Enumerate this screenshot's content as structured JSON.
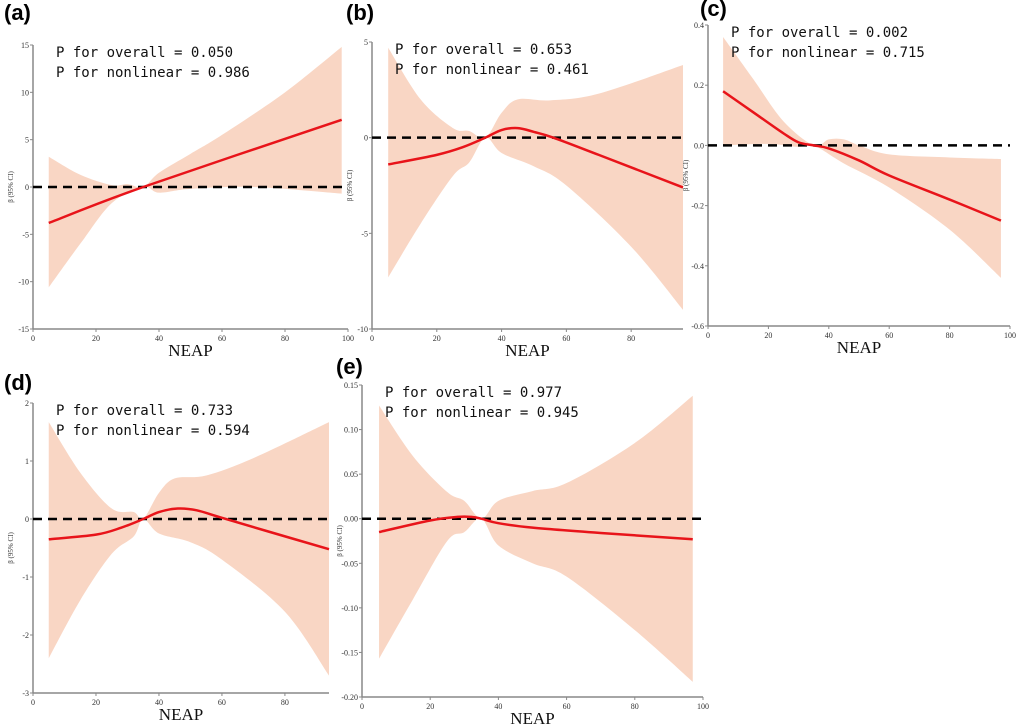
{
  "colors": {
    "fit_line": "#e8141a",
    "ci_band": "#f9d6c4",
    "reference_line": "#000000",
    "axis": "#888888"
  },
  "chart_data": [
    {
      "panel_label": "(a)",
      "type": "line",
      "xlabel": "NEAP",
      "ylabel": "β (95% CI)",
      "xlim": [
        0,
        100
      ],
      "ylim": [
        -15,
        15
      ],
      "xticks": [
        0,
        20,
        40,
        60,
        80,
        100
      ],
      "yticks": [
        -15,
        -10,
        -5,
        0,
        5,
        10,
        15
      ],
      "annotations": [
        "P for overall = 0.050",
        "P for nonlinear = 0.986"
      ],
      "reference_line": 0,
      "fit": {
        "x": [
          5,
          35,
          98
        ],
        "y": [
          -3.8,
          0,
          7.1
        ]
      },
      "ci_upper": {
        "x": [
          5,
          15,
          25,
          30,
          35,
          40,
          50,
          60,
          80,
          98
        ],
        "y": [
          3.2,
          1.3,
          0.2,
          0.3,
          0,
          1.5,
          3.5,
          5.5,
          10,
          14.8
        ]
      },
      "ci_lower": {
        "x": [
          5,
          15,
          25,
          35,
          40,
          50,
          70,
          98
        ],
        "y": [
          -10.6,
          -6,
          -1.7,
          0,
          -0.6,
          -0.2,
          0,
          -0.7
        ]
      }
    },
    {
      "panel_label": "(b)",
      "type": "line",
      "xlabel": "NEAP",
      "ylabel": "β (95% CI)",
      "xlim": [
        0,
        96
      ],
      "ylim": [
        -10,
        5
      ],
      "xticks": [
        0,
        20,
        40,
        60,
        80
      ],
      "yticks": [
        -10,
        -5,
        0,
        5
      ],
      "annotations": [
        "P for overall = 0.653",
        "P for nonlinear = 0.461"
      ],
      "reference_line": 0,
      "fit": {
        "x": [
          5,
          20,
          28,
          35,
          40,
          45,
          50,
          56,
          70,
          96
        ],
        "y": [
          -1.4,
          -0.9,
          -0.5,
          0,
          0.4,
          0.5,
          0.3,
          0,
          -0.9,
          -2.6
        ]
      },
      "ci_upper": {
        "x": [
          5,
          15,
          25,
          30,
          35,
          40,
          45,
          55,
          70,
          96
        ],
        "y": [
          4.7,
          2,
          0.5,
          0.35,
          0,
          1.3,
          2,
          1.95,
          2.3,
          3.8
        ]
      },
      "ci_lower": {
        "x": [
          5,
          15,
          25,
          30,
          35,
          40,
          50,
          60,
          80,
          96
        ],
        "y": [
          -7.3,
          -4.5,
          -2,
          -1.3,
          0,
          -0.8,
          -1.5,
          -2.5,
          -5.7,
          -9
        ]
      }
    },
    {
      "panel_label": "(c)",
      "type": "line",
      "xlabel": "NEAP",
      "ylabel": "β (95% CI)",
      "xlim": [
        0,
        100
      ],
      "ylim": [
        -0.6,
        0.4
      ],
      "xticks": [
        0,
        20,
        40,
        60,
        80,
        100
      ],
      "yticks": [
        -0.6,
        -0.4,
        -0.2,
        0.0,
        0.2,
        0.4
      ],
      "annotations": [
        "P for overall = 0.002",
        "P for nonlinear = 0.715"
      ],
      "reference_line": 0,
      "fit": {
        "x": [
          5,
          15,
          25,
          30,
          35,
          40,
          50,
          60,
          80,
          97
        ],
        "y": [
          0.18,
          0.11,
          0.04,
          0.01,
          0,
          -0.01,
          -0.05,
          -0.1,
          -0.18,
          -0.25
        ]
      },
      "ci_upper": {
        "x": [
          5,
          15,
          25,
          35,
          40,
          45,
          50,
          60,
          80,
          97
        ],
        "y": [
          0.36,
          0.22,
          0.08,
          0,
          0.02,
          0.02,
          0,
          -0.03,
          -0.04,
          -0.045
        ]
      },
      "ci_lower": {
        "x": [
          5,
          20,
          30,
          35,
          45,
          60,
          80,
          97
        ],
        "y": [
          0.0,
          0.005,
          -0.005,
          0,
          -0.06,
          -0.14,
          -0.28,
          -0.44
        ]
      }
    },
    {
      "panel_label": "(d)",
      "type": "line",
      "xlabel": "NEAP",
      "ylabel": "β (95% CI)",
      "xlim": [
        0,
        94
      ],
      "ylim": [
        -3,
        2
      ],
      "xticks": [
        0,
        20,
        40,
        60,
        80
      ],
      "yticks": [
        -3,
        -2,
        -1,
        0,
        1,
        2
      ],
      "annotations": [
        "P for overall = 0.733",
        "P for nonlinear = 0.594"
      ],
      "reference_line": 0,
      "fit": {
        "x": [
          5,
          20,
          28,
          35,
          40,
          46,
          52,
          60,
          75,
          94
        ],
        "y": [
          -0.35,
          -0.27,
          -0.15,
          0,
          0.12,
          0.18,
          0.15,
          0.02,
          -0.22,
          -0.52
        ]
      },
      "ci_upper": {
        "x": [
          5,
          15,
          25,
          32,
          35,
          40,
          45,
          55,
          70,
          94
        ],
        "y": [
          1.67,
          0.8,
          0.18,
          0.12,
          0,
          0.45,
          0.7,
          0.75,
          1.05,
          1.67
        ]
      },
      "ci_lower": {
        "x": [
          5,
          15,
          25,
          32,
          35,
          40,
          50,
          60,
          80,
          94
        ],
        "y": [
          -2.4,
          -1.4,
          -0.6,
          -0.3,
          0,
          -0.25,
          -0.4,
          -0.7,
          -1.6,
          -2.7
        ]
      }
    },
    {
      "panel_label": "(e)",
      "type": "line",
      "xlabel": "NEAP",
      "ylabel": "β (95% CI)",
      "xlim": [
        0,
        100
      ],
      "ylim": [
        -0.2,
        0.15
      ],
      "xticks": [
        0,
        20,
        40,
        60,
        80,
        100
      ],
      "yticks": [
        -0.2,
        -0.15,
        -0.1,
        -0.05,
        0.0,
        0.05,
        0.1,
        0.15
      ],
      "annotations": [
        "P for overall = 0.977",
        "P for nonlinear = 0.945"
      ],
      "reference_line": 0,
      "fit": {
        "x": [
          5,
          20,
          28,
          32,
          35,
          40,
          50,
          70,
          97
        ],
        "y": [
          -0.015,
          -0.002,
          0.002,
          0.002,
          0,
          -0.005,
          -0.01,
          -0.016,
          -0.023
        ]
      },
      "ci_upper": {
        "x": [
          5,
          15,
          25,
          30,
          35,
          40,
          50,
          60,
          80,
          97
        ],
        "y": [
          0.127,
          0.07,
          0.03,
          0.02,
          0,
          0.02,
          0.031,
          0.04,
          0.085,
          0.138
        ]
      },
      "ci_lower": {
        "x": [
          5,
          15,
          25,
          30,
          35,
          40,
          50,
          60,
          80,
          97
        ],
        "y": [
          -0.157,
          -0.09,
          -0.025,
          -0.015,
          0,
          -0.03,
          -0.05,
          -0.065,
          -0.125,
          -0.183
        ]
      }
    }
  ]
}
